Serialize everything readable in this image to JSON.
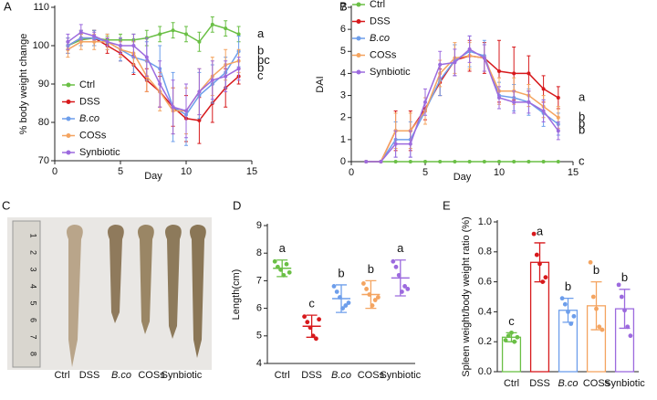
{
  "chart_data": [
    {
      "type": "line",
      "panel": "A",
      "ylabel": "% body weight change",
      "xlabel": "Day",
      "x": [
        1,
        2,
        3,
        4,
        5,
        6,
        7,
        8,
        9,
        10,
        11,
        12,
        13,
        14
      ],
      "xlim": [
        0,
        15
      ],
      "xticks": [
        0,
        5,
        10,
        15
      ],
      "ylim": [
        70,
        110
      ],
      "yticks": [
        70,
        80,
        90,
        100,
        110
      ],
      "series": [
        {
          "name": "Ctrl",
          "color": "#6abf45",
          "values": [
            100,
            101.5,
            102,
            101.5,
            101.5,
            101.5,
            102,
            103,
            104,
            103,
            101,
            105.5,
            104.5,
            103
          ],
          "errors": [
            1,
            1.5,
            2,
            1,
            1.5,
            1.5,
            2,
            2,
            2,
            2,
            2.5,
            2,
            2,
            2
          ],
          "letter": "a"
        },
        {
          "name": "DSS",
          "color": "#d7191c",
          "values": [
            100,
            102,
            102,
            100,
            98,
            95,
            91,
            88,
            84,
            81,
            80.5,
            85,
            89,
            92
          ],
          "errors": [
            2,
            2,
            2,
            2,
            2,
            2.5,
            3,
            4,
            5,
            6,
            6,
            5,
            5,
            2
          ],
          "letter": "c"
        },
        {
          "name": "B.co",
          "color": "#6d9eeb",
          "values": [
            100,
            102,
            102,
            101,
            99,
            97,
            96,
            94,
            84,
            82,
            87,
            90,
            93,
            98.5
          ],
          "errors": [
            2,
            2,
            2,
            2,
            3,
            4,
            5,
            6,
            9,
            8,
            6,
            5,
            4,
            4
          ],
          "letter": "b"
        },
        {
          "name": "COSs",
          "color": "#f4a460",
          "values": [
            99,
            101,
            101,
            101,
            99,
            98,
            92,
            88,
            83,
            83,
            88,
            92,
            95,
            96
          ],
          "errors": [
            2,
            2,
            2,
            2,
            2,
            3,
            4,
            5,
            6,
            6,
            6,
            5,
            4,
            3
          ],
          "letter": "bc"
        },
        {
          "name": "Synbiotic",
          "color": "#9c6ade",
          "values": [
            101,
            103.5,
            102.5,
            101,
            100,
            100,
            97,
            90,
            84,
            83,
            88,
            91,
            92,
            94
          ],
          "errors": [
            2,
            2,
            1,
            1,
            2,
            3,
            5,
            6,
            7,
            7,
            6,
            5,
            4,
            3
          ],
          "letter": "b"
        }
      ]
    },
    {
      "type": "line",
      "panel": "B",
      "ylabel": "DAI",
      "xlabel": "Day",
      "x": [
        1,
        2,
        3,
        4,
        5,
        6,
        7,
        8,
        9,
        10,
        11,
        12,
        13,
        14
      ],
      "xlim": [
        0,
        15
      ],
      "xticks": [
        0,
        5,
        10,
        15
      ],
      "ylim": [
        0,
        7
      ],
      "yticks": [
        0,
        1,
        2,
        3,
        4,
        5,
        6,
        7
      ],
      "series": [
        {
          "name": "Ctrl",
          "color": "#6abf45",
          "values": [
            0,
            0,
            0,
            0,
            0,
            0,
            0,
            0,
            0,
            0,
            0,
            0,
            0,
            0
          ],
          "errors": [
            0,
            0,
            0,
            0,
            0,
            0,
            0,
            0,
            0,
            0,
            0,
            0,
            0,
            0
          ],
          "letter": "c"
        },
        {
          "name": "DSS",
          "color": "#d7191c",
          "values": [
            0,
            0,
            1.4,
            1.4,
            2.4,
            3.6,
            4.6,
            4.8,
            4.7,
            4.1,
            4.0,
            4.0,
            3.3,
            2.9
          ],
          "errors": [
            0,
            0,
            0.9,
            0.9,
            0.5,
            0.6,
            0.7,
            0.7,
            0.7,
            1.4,
            1.2,
            0.8,
            0.6,
            0.5
          ],
          "letter": "a"
        },
        {
          "name": "B.co",
          "color": "#6d9eeb",
          "values": [
            0,
            0,
            1.0,
            1.0,
            2.3,
            3.7,
            4.6,
            5.0,
            4.8,
            3.0,
            2.9,
            2.7,
            2.2,
            1.7
          ],
          "errors": [
            0,
            0,
            0.8,
            0.8,
            0.6,
            0.7,
            0.7,
            0.7,
            0.7,
            0.6,
            0.6,
            0.6,
            0.6,
            0.5
          ],
          "letter": "b"
        },
        {
          "name": "COSs",
          "color": "#f4a460",
          "values": [
            0,
            0,
            1.4,
            1.4,
            2.3,
            4.0,
            4.7,
            4.8,
            4.7,
            3.2,
            3.2,
            3.0,
            2.5,
            2.0
          ],
          "errors": [
            0,
            0,
            0.8,
            0.8,
            0.6,
            0.6,
            0.7,
            0.6,
            0.6,
            0.6,
            0.6,
            0.5,
            0.5,
            0.5
          ],
          "letter": "b"
        },
        {
          "name": "Synbiotic",
          "color": "#9c6ade",
          "values": [
            0,
            0,
            0.8,
            0.8,
            2.7,
            4.4,
            4.5,
            5.1,
            4.7,
            2.9,
            2.7,
            2.7,
            2.3,
            1.4
          ],
          "errors": [
            0,
            0,
            0.6,
            0.6,
            0.6,
            0.6,
            0.6,
            0.6,
            0.6,
            0.5,
            0.5,
            0.5,
            0.5,
            0.4
          ],
          "letter": "b"
        }
      ]
    },
    {
      "type": "dot",
      "panel": "D",
      "ylabel": "Length(cm)",
      "categories": [
        "Ctrl",
        "DSS",
        "B.co",
        "COSs",
        "Synbiotic"
      ],
      "colors": [
        "#6abf45",
        "#d7191c",
        "#6d9eeb",
        "#f4a460",
        "#9c6ade"
      ],
      "ylim": [
        4,
        9
      ],
      "yticks": [
        4,
        5,
        6,
        7,
        8,
        9
      ],
      "means": [
        7.45,
        5.35,
        6.35,
        6.5,
        7.1
      ],
      "errors": [
        0.3,
        0.4,
        0.5,
        0.5,
        0.65
      ],
      "points": [
        [
          7.7,
          7.5,
          7.4,
          7.2,
          7.6,
          7.3
        ],
        [
          5.7,
          5.5,
          5.3,
          5.0,
          4.9,
          5.6
        ],
        [
          6.8,
          6.6,
          6.4,
          6.0,
          6.1,
          6.2
        ],
        [
          6.9,
          6.7,
          6.5,
          6.1,
          6.3,
          6.4
        ],
        [
          7.7,
          7.5,
          7.2,
          6.6,
          6.8,
          6.7
        ]
      ],
      "letters": [
        "a",
        "c",
        "b",
        "b",
        "a"
      ]
    },
    {
      "type": "bar",
      "panel": "E",
      "ylabel": "Spleen weight/body weight ratio (%)",
      "categories": [
        "Ctrl",
        "DSS",
        "B.co",
        "COSs",
        "Synbiotic"
      ],
      "colors": [
        "#6abf45",
        "#d7191c",
        "#6d9eeb",
        "#f4a460",
        "#9c6ade"
      ],
      "ylim": [
        0,
        1.0
      ],
      "yticks": [
        {
          "value": 0,
          "label": "0.0"
        },
        0.2,
        0.4,
        0.6,
        0.8,
        {
          "value": 1,
          "label": "1.0"
        }
      ],
      "means": [
        0.23,
        0.73,
        0.41,
        0.44,
        0.42
      ],
      "errors": [
        0.03,
        0.13,
        0.08,
        0.16,
        0.13
      ],
      "points": [
        [
          0.21,
          0.24,
          0.26,
          0.2,
          0.23
        ],
        [
          0.92,
          0.78,
          0.72,
          0.6,
          0.63
        ],
        [
          0.49,
          0.45,
          0.4,
          0.32,
          0.37
        ],
        [
          0.73,
          0.5,
          0.42,
          0.3,
          0.28
        ],
        [
          0.58,
          0.5,
          0.41,
          0.3,
          0.24
        ]
      ],
      "letters": [
        "c",
        "a",
        "b",
        "b",
        "b"
      ]
    }
  ],
  "photo": {
    "panel": "C",
    "labels": [
      "Ctrl",
      "DSS",
      "B.co",
      "COSs",
      "Synbiotic"
    ],
    "ruler": [
      1,
      2,
      3,
      4,
      5,
      6,
      7,
      8
    ]
  }
}
